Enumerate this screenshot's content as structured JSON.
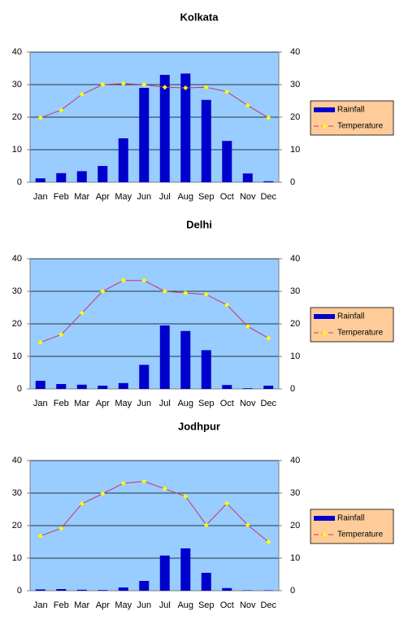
{
  "chart_data": [
    {
      "type": "combo",
      "title": "Kolkata",
      "categories": [
        "Jan",
        "Feb",
        "Mar",
        "Apr",
        "May",
        "Jun",
        "Jul",
        "Aug",
        "Sep",
        "Oct",
        "Nov",
        "Dec"
      ],
      "series": [
        {
          "name": "Rainfall",
          "type": "bar",
          "color": "#0000cc",
          "values": [
            1.2,
            2.8,
            3.4,
            5,
            13.5,
            29,
            33,
            33.4,
            25.3,
            12.7,
            2.7,
            0.3
          ]
        },
        {
          "name": "Temperature",
          "type": "line",
          "axis": "y2",
          "color": "#cc3366",
          "marker_color": "#ffff00",
          "values": [
            19.8,
            22.2,
            27,
            30,
            30.3,
            30,
            29.2,
            29,
            29.2,
            27.8,
            23.6,
            19.8
          ]
        }
      ],
      "ylim": [
        0,
        40
      ],
      "yticks": [
        0,
        10,
        20,
        30,
        40
      ],
      "y2lim": [
        0,
        40
      ],
      "y2ticks": [
        0,
        10,
        20,
        30,
        40
      ],
      "grid": true,
      "legend": "right",
      "plot_color": "#99ccff",
      "legend_color": "#ffcc99"
    },
    {
      "type": "combo",
      "title": "Delhi",
      "categories": [
        "Jan",
        "Feb",
        "Mar",
        "Apr",
        "May",
        "Jun",
        "Jul",
        "Aug",
        "Sep",
        "Oct",
        "Nov",
        "Dec"
      ],
      "series": [
        {
          "name": "Rainfall",
          "type": "bar",
          "color": "#0000cc",
          "values": [
            2.5,
            1.5,
            1.3,
            1,
            1.8,
            7.4,
            19.5,
            17.8,
            11.9,
            1.2,
            0.2,
            1
          ]
        },
        {
          "name": "Temperature",
          "type": "line",
          "axis": "y2",
          "color": "#cc3366",
          "marker_color": "#ffff00",
          "values": [
            14.3,
            16.7,
            23.3,
            30,
            33.3,
            33.3,
            30,
            29.5,
            29,
            25.8,
            19.2,
            15.6
          ]
        }
      ],
      "ylim": [
        0,
        40
      ],
      "yticks": [
        0,
        10,
        20,
        30,
        40
      ],
      "y2lim": [
        0,
        40
      ],
      "y2ticks": [
        0,
        10,
        20,
        30,
        40
      ],
      "grid": true,
      "legend": "right",
      "plot_color": "#99ccff",
      "legend_color": "#ffcc99"
    },
    {
      "type": "combo",
      "title": "Jodhpur",
      "categories": [
        "Jan",
        "Feb",
        "Mar",
        "Apr",
        "May",
        "Jun",
        "Jul",
        "Aug",
        "Sep",
        "Oct",
        "Nov",
        "Dec"
      ],
      "series": [
        {
          "name": "Rainfall",
          "type": "bar",
          "color": "#0000cc",
          "values": [
            0.4,
            0.5,
            0.3,
            0.2,
            1,
            3,
            10.8,
            13,
            5.5,
            0.8,
            0.1,
            0.1
          ]
        },
        {
          "name": "Temperature",
          "type": "line",
          "axis": "y2",
          "color": "#cc3366",
          "marker_color": "#ffff00",
          "values": [
            16.8,
            19.2,
            26.7,
            29.8,
            33,
            33.6,
            31.3,
            29,
            20.2,
            26.8,
            20.2,
            15
          ]
        }
      ],
      "ylim": [
        0,
        40
      ],
      "yticks": [
        0,
        10,
        20,
        30,
        40
      ],
      "y2lim": [
        0,
        40
      ],
      "y2ticks": [
        0,
        10,
        20,
        30,
        40
      ],
      "grid": true,
      "legend": "right",
      "plot_color": "#99ccff",
      "legend_color": "#ffcc99"
    }
  ]
}
